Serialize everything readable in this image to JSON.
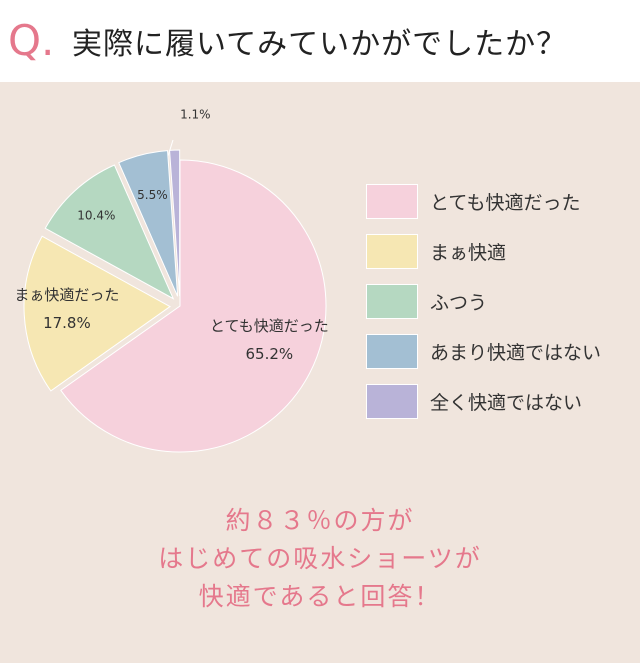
{
  "header": {
    "q_mark": "Q.",
    "question": "実際に履いてみていかがでしたか？"
  },
  "chart_data": {
    "type": "pie",
    "slices": [
      {
        "label": "とても快適だった",
        "value": 65.2,
        "value_label": "65.2%",
        "chart_label": "とても快適だった",
        "color": "#f6d1dc"
      },
      {
        "label": "まぁ快適",
        "value": 17.8,
        "value_label": "17.8%",
        "chart_label": "まぁ快適だった",
        "color": "#f6e7b3"
      },
      {
        "label": "ふつう",
        "value": 10.4,
        "value_label": "10.4%",
        "chart_label": "",
        "color": "#b5d8c1"
      },
      {
        "label": "あまり快適ではない",
        "value": 5.5,
        "value_label": "5.5%",
        "chart_label": "",
        "color": "#a3bfd3"
      },
      {
        "label": "全く快適ではない",
        "value": 1.1,
        "value_label": "1.1%",
        "chart_label": "",
        "color": "#b9b3d8"
      }
    ],
    "legend_position": "right"
  },
  "message": {
    "lines": [
      "約８３％の方が",
      "はじめての吸水ショーツが",
      "快適であると回答！"
    ]
  }
}
